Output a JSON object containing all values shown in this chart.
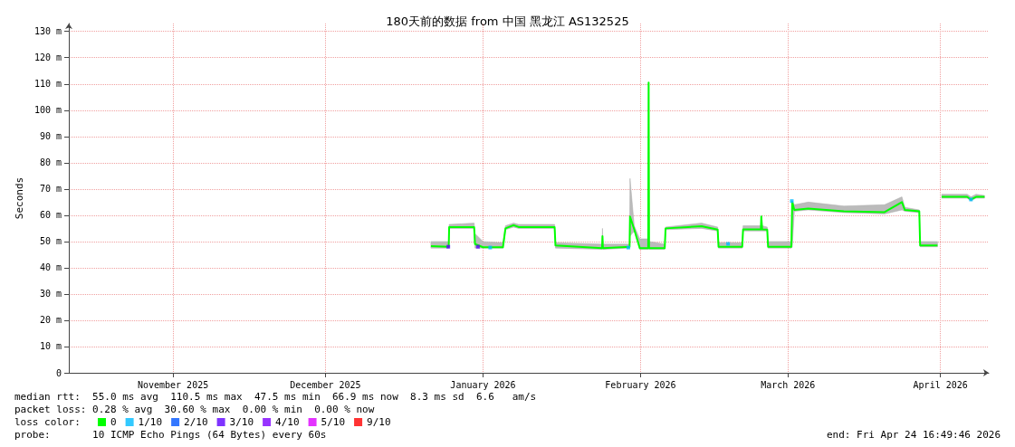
{
  "chart_data": {
    "type": "line",
    "title": "180天前的数据 from 中国 黑龙江 AS132525",
    "ylabel": "Seconds",
    "xlim": [
      "2025-10-26T12:00",
      "2026-04-25T12:00"
    ],
    "xticks": [
      {
        "value": "2025-11-16",
        "label": "November 2025"
      },
      {
        "value": "2025-12-16",
        "label": "December 2025"
      },
      {
        "value": "2026-01-16",
        "label": "January 2026"
      },
      {
        "value": "2026-02-16",
        "label": "February 2026"
      },
      {
        "value": "2026-03-17",
        "label": "March 2026"
      },
      {
        "value": "2026-04-16",
        "label": "April 2026"
      }
    ],
    "ylim": [
      0,
      133
    ],
    "yticks": [
      0,
      {
        "value": 10,
        "label": "10 m"
      },
      {
        "value": 20,
        "label": "20 m"
      },
      {
        "value": 30,
        "label": "30 m"
      },
      {
        "value": 40,
        "label": "40 m"
      },
      {
        "value": 50,
        "label": "50 m"
      },
      {
        "value": 60,
        "label": "60 m"
      },
      {
        "value": 70,
        "label": "70 m"
      },
      {
        "value": 80,
        "label": "80 m"
      },
      {
        "value": 90,
        "label": "90 m"
      },
      {
        "value": 100,
        "label": "100 m"
      },
      {
        "value": 110,
        "label": "110 m"
      },
      {
        "value": 120,
        "label": "120 m"
      },
      {
        "value": 130,
        "label": "130 m"
      }
    ],
    "grid": true,
    "legend": "bottom left",
    "legend_title": "loss color:",
    "series": [
      {
        "name": "0",
        "color": "#00ff00",
        "marker": "none",
        "x": [
          "2026-01-05T18:00",
          "2026-01-09T06:00",
          "2026-01-09T08:00",
          "2026-01-14T06:00",
          "2026-01-14T10:00",
          "2026-01-16",
          "2026-01-19T22:00",
          "2026-01-20T10:00",
          "2026-01-22",
          "2026-01-23",
          "2026-01-30T02:00",
          "2026-01-30T06:00",
          "2026-02-08T10:00",
          "2026-02-08T12:00",
          "2026-02-08T14:00",
          "2026-02-13T20:00",
          "2026-02-13T22:00",
          "2026-02-14T18:00",
          "2026-02-15T20:00",
          "2026-02-17T12:00",
          "2026-02-17T14:00",
          "2026-02-17T16:00",
          "2026-02-20T18:00",
          "2026-02-20T22:00",
          "2026-02-28",
          "2026-03-03T04:00",
          "2026-03-03T08:00",
          "2026-03-08",
          "2026-03-08T04:00",
          "2026-03-11T16:00",
          "2026-03-11T18:00",
          "2026-03-11T22:00",
          "2026-03-12T22:00",
          "2026-03-13T02:00",
          "2026-03-17T16:00",
          "2026-03-17T20:00",
          "2026-03-18T06:00",
          "2026-03-21",
          "2026-03-28",
          "2026-04-05",
          "2026-04-08T10:00",
          "2026-04-09",
          "2026-04-11T20:00",
          "2026-04-12",
          "2026-04-15T10:00",
          "2026-04-15T12:00",
          "2026-04-16T06:00",
          "2026-04-21T06:00",
          "2026-04-22",
          "2026-04-23",
          "2026-04-24T16:00"
        ],
        "values": [
          48.2,
          48,
          55.5,
          55.5,
          49,
          47.8,
          47.8,
          55,
          56.2,
          55.5,
          55.5,
          48.5,
          47.5,
          52,
          47.5,
          48,
          59.5,
          54.6,
          47.5,
          47.5,
          110.5,
          47.5,
          47.5,
          55,
          55.8,
          54.5,
          48,
          48,
          54.6,
          54.6,
          59.5,
          54.6,
          54.5,
          48,
          48,
          65,
          62,
          62.5,
          61.5,
          61.2,
          65,
          62,
          61.5,
          48.5,
          48.5,
          null,
          67,
          67,
          66,
          67,
          67
        ],
        "lower": [
          47.5,
          47.5,
          55,
          55,
          47.5,
          47.5,
          47.5,
          54.5,
          55.5,
          55,
          55,
          47.5,
          47,
          47.5,
          47,
          47.5,
          52,
          54,
          47,
          47,
          47.5,
          47,
          47,
          54.5,
          55,
          54,
          47.5,
          47.5,
          54,
          54,
          54,
          54,
          54,
          47.5,
          47.5,
          48,
          61.5,
          62,
          61,
          60.5,
          62,
          61.5,
          61,
          48,
          48,
          null,
          66.5,
          66.5,
          65.5,
          66.5,
          66.5
        ],
        "upper": [
          50,
          50,
          56.5,
          57,
          53,
          50,
          49.5,
          56,
          57,
          56.5,
          56.5,
          49.5,
          49,
          55,
          49,
          49,
          74,
          56,
          51,
          51,
          110.5,
          50,
          49,
          55.5,
          57,
          55.5,
          49.5,
          49.5,
          56,
          56,
          60,
          56,
          55.5,
          50,
          50,
          65.5,
          64,
          65,
          63.5,
          64,
          67,
          63,
          62,
          50,
          50,
          null,
          68,
          68,
          67,
          68,
          67.5
        ]
      },
      {
        "name": "1/10",
        "type": "scatter",
        "color": "#00bbff",
        "marker": "square",
        "x": [
          "2026-01-17T10:00",
          "2026-02-13T14:00",
          "2026-03-05T05:00",
          "2026-03-17T18:00",
          "2026-04-22"
        ],
        "values": [
          47.7,
          47.7,
          49.1,
          65.4,
          66
        ]
      },
      {
        "name": "2/10",
        "type": "scatter",
        "color": "#0055ff",
        "marker": "square"
      },
      {
        "name": "3/10",
        "type": "scatter",
        "color": "#5e00ff",
        "marker": "square",
        "x": [
          "2026-01-09T04:00",
          "2026-01-15"
        ],
        "values": [
          48,
          48
        ]
      },
      {
        "name": "4/10",
        "type": "scatter",
        "color": "#7e00ff",
        "marker": "square"
      },
      {
        "name": "5/10",
        "type": "scatter",
        "color": "#dd00ff",
        "marker": "square"
      },
      {
        "name": "9/10",
        "type": "scatter",
        "color": "#ff0000",
        "marker": "square"
      }
    ],
    "annotations": [
      "median rtt:  55.0 ms avg  110.5 ms max  47.5 ms min  66.9 ms now  8.3 ms sd  6.6   am/s",
      "packet loss: 0.28 % avg  30.60 % max  0.00 % min  0.00 % now",
      "probe:       10 ICMP Echo Pings (64 Bytes) every 60s",
      "end: Fri Apr 24 16:49:46 2026"
    ]
  }
}
